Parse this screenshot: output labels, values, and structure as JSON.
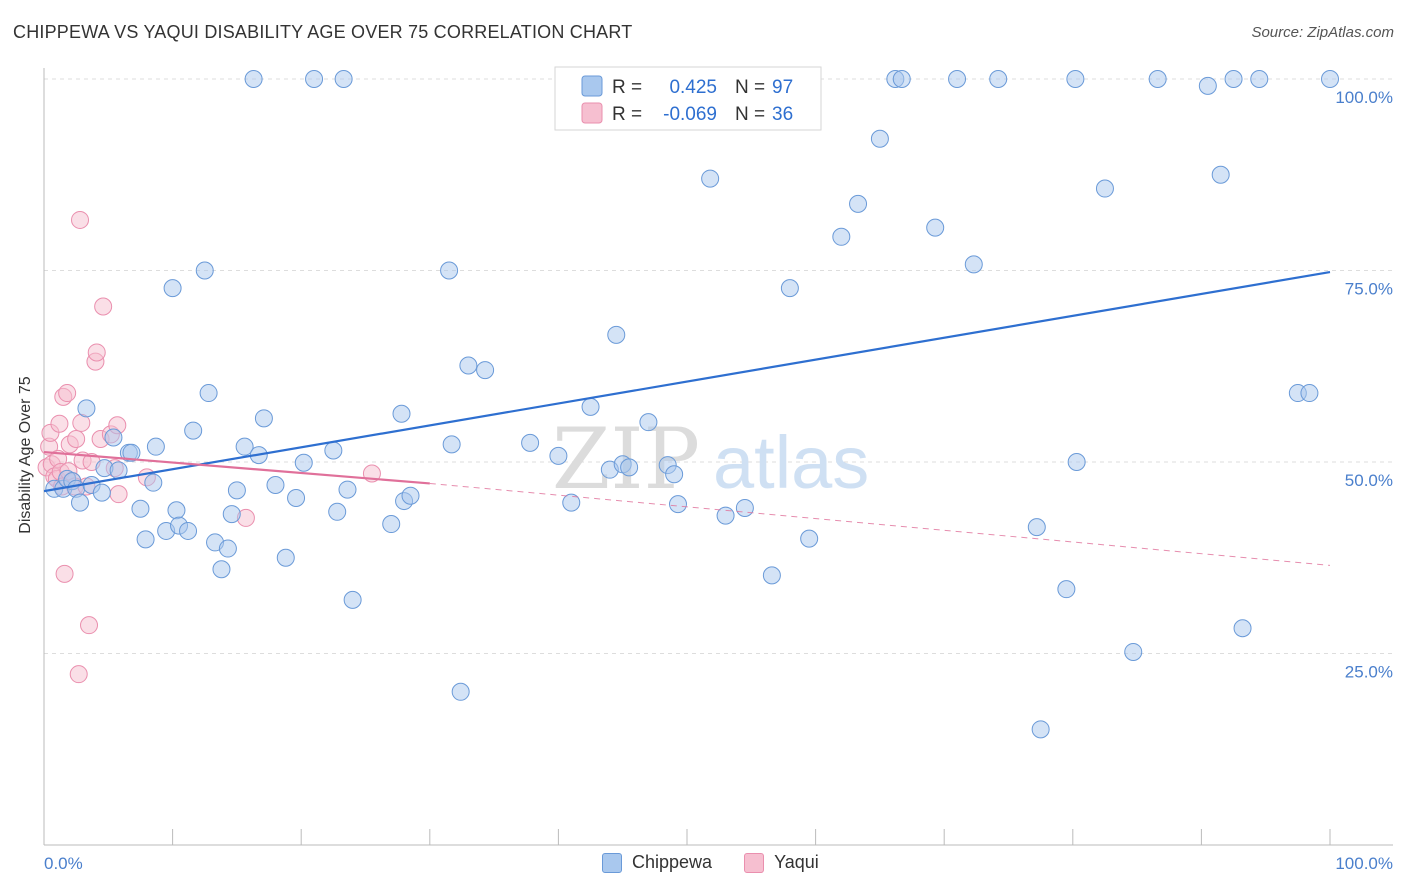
{
  "title": "CHIPPEWA VS YAQUI DISABILITY AGE OVER 75 CORRELATION CHART",
  "source": "Source: ZipAtlas.com",
  "colors": {
    "chippewa_fill": "#a9c8ee",
    "chippewa_stroke": "#6a9ad8",
    "chippewa_line": "#2e6fd0",
    "yaqui_fill": "#f6bfd0",
    "yaqui_stroke": "#ea8fae",
    "yaqui_line": "#e0709a",
    "tick_label": "#4a7fcc"
  },
  "legend": {
    "rows": [
      {
        "series": "Chippewa",
        "r_label": "R =",
        "r_value": "0.425",
        "n_label": "N =",
        "n_value": "97"
      },
      {
        "series": "Yaqui",
        "r_label": "R =",
        "r_value": "-0.069",
        "n_label": "N =",
        "n_value": "36"
      }
    ]
  },
  "watermark": {
    "part1": "ZIP",
    "part2": "atlas"
  },
  "chart_data": {
    "type": "scatter",
    "title": "CHIPPEWA VS YAQUI DISABILITY AGE OVER 75 CORRELATION CHART",
    "xlabel": "",
    "ylabel": "Disability Age Over 75",
    "xlim": [
      0,
      100
    ],
    "ylim": [
      0,
      100
    ],
    "x_tick_labels": [
      "0.0%",
      "100.0%"
    ],
    "y_ticks": [
      25,
      50,
      75,
      100
    ],
    "y_tick_labels": [
      "25.0%",
      "50.0%",
      "75.0%",
      "100.0%"
    ],
    "grid": true,
    "legend_position": "bottom-center",
    "series": [
      {
        "name": "Chippewa",
        "r": 0.425,
        "n": 97,
        "trend": {
          "x": [
            0,
            100
          ],
          "y": [
            46.2,
            74.8
          ],
          "style": "solid"
        },
        "points": [
          [
            0.8,
            46.5
          ],
          [
            1.5,
            46.5
          ],
          [
            1.8,
            47.8
          ],
          [
            2.2,
            47.5
          ],
          [
            2.5,
            46.5
          ],
          [
            2.8,
            44.7
          ],
          [
            3.3,
            57.0
          ],
          [
            3.7,
            47.0
          ],
          [
            4.5,
            46.0
          ],
          [
            4.7,
            49.2
          ],
          [
            5.4,
            53.2
          ],
          [
            5.8,
            48.9
          ],
          [
            6.6,
            51.2
          ],
          [
            6.8,
            51.2
          ],
          [
            7.5,
            43.9
          ],
          [
            7.9,
            39.9
          ],
          [
            8.5,
            47.3
          ],
          [
            8.7,
            52.0
          ],
          [
            9.5,
            41.0
          ],
          [
            10.0,
            72.7
          ],
          [
            10.3,
            43.7
          ],
          [
            10.5,
            41.7
          ],
          [
            11.2,
            41.0
          ],
          [
            11.6,
            54.1
          ],
          [
            12.5,
            75.0
          ],
          [
            12.8,
            59.0
          ],
          [
            13.3,
            39.5
          ],
          [
            13.8,
            36.0
          ],
          [
            14.3,
            38.7
          ],
          [
            14.6,
            43.2
          ],
          [
            15.0,
            46.3
          ],
          [
            15.6,
            52.0
          ],
          [
            16.3,
            100.0
          ],
          [
            16.7,
            50.9
          ],
          [
            17.1,
            55.7
          ],
          [
            18.0,
            47.0
          ],
          [
            18.8,
            37.5
          ],
          [
            19.6,
            45.3
          ],
          [
            20.2,
            49.9
          ],
          [
            21.0,
            100.0
          ],
          [
            22.5,
            51.5
          ],
          [
            22.8,
            43.5
          ],
          [
            23.3,
            100.0
          ],
          [
            23.6,
            46.4
          ],
          [
            24.0,
            32.0
          ],
          [
            27.0,
            41.9
          ],
          [
            27.8,
            56.3
          ],
          [
            28.0,
            44.9
          ],
          [
            28.5,
            45.6
          ],
          [
            31.5,
            75.0
          ],
          [
            31.7,
            52.3
          ],
          [
            32.4,
            20.0
          ],
          [
            33.0,
            62.6
          ],
          [
            34.3,
            62.0
          ],
          [
            37.8,
            52.5
          ],
          [
            40.0,
            50.8
          ],
          [
            41.0,
            44.7
          ],
          [
            42.5,
            57.2
          ],
          [
            44.0,
            49.0
          ],
          [
            44.5,
            66.6
          ],
          [
            45.0,
            49.7
          ],
          [
            45.5,
            49.3
          ],
          [
            47.0,
            55.2
          ],
          [
            48.5,
            49.6
          ],
          [
            49.0,
            48.4
          ],
          [
            49.3,
            44.5
          ],
          [
            51.8,
            87.0
          ],
          [
            53.0,
            43.0
          ],
          [
            54.5,
            44.0
          ],
          [
            56.6,
            35.2
          ],
          [
            58.0,
            72.7
          ],
          [
            59.5,
            40.0
          ],
          [
            62.0,
            79.4
          ],
          [
            63.3,
            83.7
          ],
          [
            65.0,
            92.2
          ],
          [
            66.2,
            100.0
          ],
          [
            66.7,
            100.0
          ],
          [
            69.3,
            80.6
          ],
          [
            71.0,
            100.0
          ],
          [
            72.3,
            75.8
          ],
          [
            74.2,
            100.0
          ],
          [
            77.2,
            41.5
          ],
          [
            77.5,
            15.1
          ],
          [
            79.5,
            33.4
          ],
          [
            80.2,
            100.0
          ],
          [
            80.3,
            50.0
          ],
          [
            82.5,
            85.7
          ],
          [
            84.7,
            25.2
          ],
          [
            86.6,
            100.0
          ],
          [
            90.5,
            99.1
          ],
          [
            91.5,
            87.5
          ],
          [
            92.5,
            100.0
          ],
          [
            93.2,
            28.3
          ],
          [
            94.5,
            100.0
          ],
          [
            97.5,
            59.0
          ],
          [
            98.4,
            59.0
          ],
          [
            100.0,
            100.0
          ]
        ]
      },
      {
        "name": "Yaqui",
        "r": -0.069,
        "n": 36,
        "trend": {
          "x": [
            0,
            30
          ],
          "y": [
            51.3,
            47.2
          ],
          "style": "solid",
          "extension": {
            "x": [
              30,
              100
            ],
            "y": [
              47.2,
              36.5
            ],
            "style": "dashed"
          }
        },
        "points": [
          [
            0.2,
            49.3
          ],
          [
            0.4,
            52.0
          ],
          [
            0.5,
            53.8
          ],
          [
            0.6,
            49.7
          ],
          [
            0.8,
            48.1
          ],
          [
            1.0,
            47.8
          ],
          [
            1.1,
            50.4
          ],
          [
            1.2,
            55.0
          ],
          [
            1.3,
            48.7
          ],
          [
            1.5,
            58.5
          ],
          [
            1.6,
            35.4
          ],
          [
            1.8,
            59.0
          ],
          [
            1.9,
            48.8
          ],
          [
            2.0,
            52.3
          ],
          [
            2.2,
            47.5
          ],
          [
            2.4,
            46.8
          ],
          [
            2.5,
            53.0
          ],
          [
            2.7,
            22.3
          ],
          [
            2.8,
            81.6
          ],
          [
            2.9,
            55.1
          ],
          [
            3.0,
            50.2
          ],
          [
            3.3,
            46.8
          ],
          [
            3.5,
            28.7
          ],
          [
            3.7,
            50.0
          ],
          [
            4.0,
            63.1
          ],
          [
            4.1,
            64.3
          ],
          [
            4.4,
            53.0
          ],
          [
            4.6,
            70.3
          ],
          [
            5.2,
            53.6
          ],
          [
            5.5,
            49.2
          ],
          [
            5.7,
            54.8
          ],
          [
            5.8,
            45.8
          ],
          [
            8.0,
            48.0
          ],
          [
            15.7,
            42.7
          ],
          [
            25.5,
            48.5
          ],
          [
            1.4,
            46.8
          ]
        ]
      }
    ]
  },
  "bottom_legend": [
    {
      "label": "Chippewa"
    },
    {
      "label": "Yaqui"
    }
  ]
}
